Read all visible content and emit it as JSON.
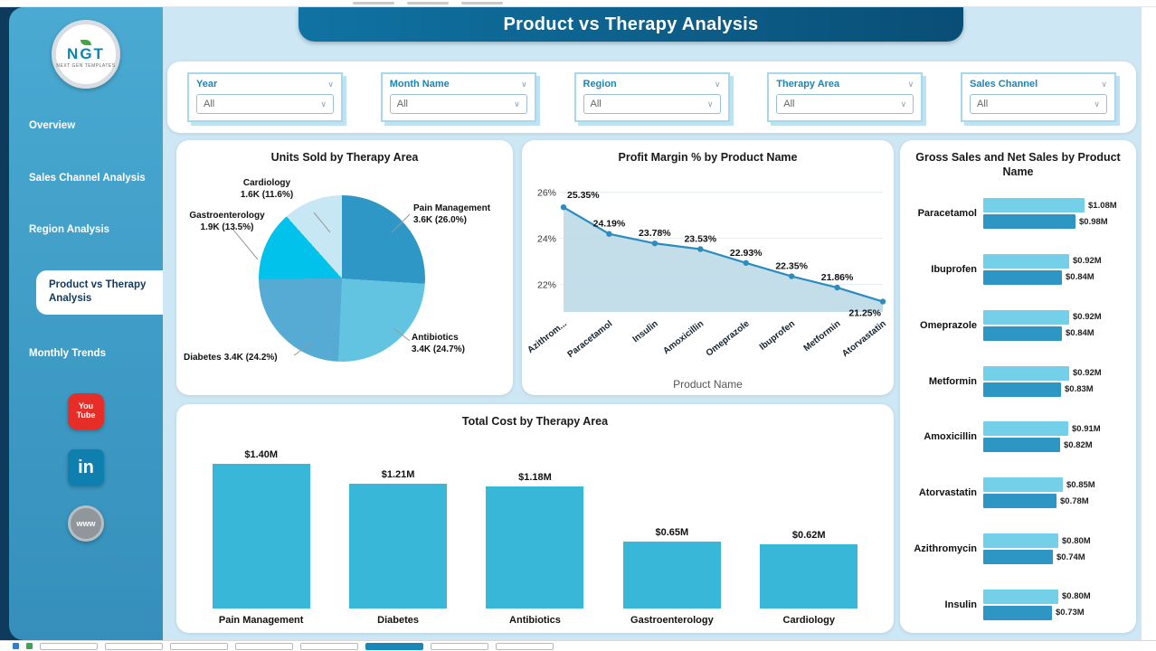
{
  "header": {
    "title": "Product vs Therapy Analysis"
  },
  "sidebar": {
    "logo": {
      "text": "NGT",
      "subtext": "NEXT GEN TEMPLATES"
    },
    "items": [
      {
        "label": "Overview",
        "active": false
      },
      {
        "label": "Sales Channel Analysis",
        "active": false
      },
      {
        "label": "Region Analysis",
        "active": false
      },
      {
        "label": "Product vs Therapy Analysis",
        "active": true
      },
      {
        "label": "Monthly Trends",
        "active": false
      }
    ],
    "social": [
      {
        "name": "youtube-icon",
        "text": "You Tube"
      },
      {
        "name": "linkedin-icon",
        "text": "in"
      },
      {
        "name": "web-icon",
        "text": "www"
      }
    ]
  },
  "filters": [
    {
      "label": "Year",
      "value": "All"
    },
    {
      "label": "Month Name",
      "value": "All"
    },
    {
      "label": "Region",
      "value": "All"
    },
    {
      "label": "Therapy Area",
      "value": "All"
    },
    {
      "label": "Sales Channel",
      "value": "All"
    }
  ],
  "chart_data": [
    {
      "type": "pie",
      "title": "Units Sold by Therapy Area",
      "slices": [
        {
          "label": "Pain Management",
          "value_label": "3.6K (26.0%)",
          "percent": 26.0,
          "color": "#2f97c5"
        },
        {
          "label": "Antibiotics",
          "value_label": "3.4K (24.7%)",
          "percent": 24.7,
          "color": "#63c4e2"
        },
        {
          "label": "Diabetes",
          "value_label": "3.4K (24.2%)",
          "percent": 24.2,
          "color": "#55abd4"
        },
        {
          "label": "Gastroenterology",
          "value_label": "1.9K (13.5%)",
          "percent": 13.5,
          "color": "#00c2ea"
        },
        {
          "label": "Cardiology",
          "value_label": "1.6K (11.6%)",
          "percent": 11.6,
          "color": "#c7e7f4"
        }
      ]
    },
    {
      "type": "area",
      "title": "Profit Margin % by Product Name",
      "categories": [
        "Azithrom...",
        "Paracetamol",
        "Insulin",
        "Amoxicillin",
        "Omeprazole",
        "Ibuprofen",
        "Metformin",
        "Atorvastatin"
      ],
      "values": [
        25.35,
        24.19,
        23.78,
        23.53,
        22.93,
        22.35,
        21.86,
        21.25
      ],
      "point_labels": [
        "25.35%",
        "24.19%",
        "23.78%",
        "23.53%",
        "22.93%",
        "22.35%",
        "21.86%",
        "21.25%"
      ],
      "yticks": [
        22,
        24,
        26
      ],
      "ytick_labels": [
        "22%",
        "24%",
        "26%"
      ],
      "ylim": [
        20.8,
        26.3
      ],
      "xlabel": "Product Name",
      "line_color": "#2b8cbd",
      "fill_color": "#bdd9e7"
    },
    {
      "type": "bar",
      "title": "Total Cost by Therapy Area",
      "categories": [
        "Pain Management",
        "Diabetes",
        "Antibiotics",
        "Gastroenterology",
        "Cardiology"
      ],
      "values": [
        1.4,
        1.21,
        1.18,
        0.65,
        0.62
      ],
      "value_labels": [
        "$1.40M",
        "$1.21M",
        "$1.18M",
        "$0.65M",
        "$0.62M"
      ],
      "bar_color": "#38b7d8"
    },
    {
      "type": "bar-horizontal",
      "title": "Gross Sales and Net Sales by Product Name",
      "categories": [
        "Paracetamol",
        "Ibuprofen",
        "Omeprazole",
        "Metformin",
        "Amoxicillin",
        "Atorvastatin",
        "Azithromycin",
        "Insulin"
      ],
      "series": [
        {
          "name": "Gross Sales",
          "color": "#74cfe9",
          "values": [
            1.08,
            0.92,
            0.92,
            0.92,
            0.91,
            0.85,
            0.8,
            0.8
          ],
          "value_labels": [
            "$1.08M",
            "$0.92M",
            "$0.92M",
            "$0.92M",
            "$0.91M",
            "$0.85M",
            "$0.80M",
            "$0.80M"
          ]
        },
        {
          "name": "Net Sales",
          "color": "#2d96c5",
          "values": [
            0.98,
            0.84,
            0.84,
            0.83,
            0.82,
            0.78,
            0.74,
            0.73
          ],
          "value_labels": [
            "$0.98M",
            "$0.84M",
            "$0.84M",
            "$0.83M",
            "$0.82M",
            "$0.78M",
            "$0.74M",
            "$0.73M"
          ]
        }
      ]
    }
  ],
  "colors": {
    "content_bg": "#cde7f5",
    "sidebar": "#3da0c9",
    "left_edge": "#0e3a5c",
    "header_start": "#1073a3",
    "header_end": "#094e76",
    "accent": "#1a86b6"
  }
}
